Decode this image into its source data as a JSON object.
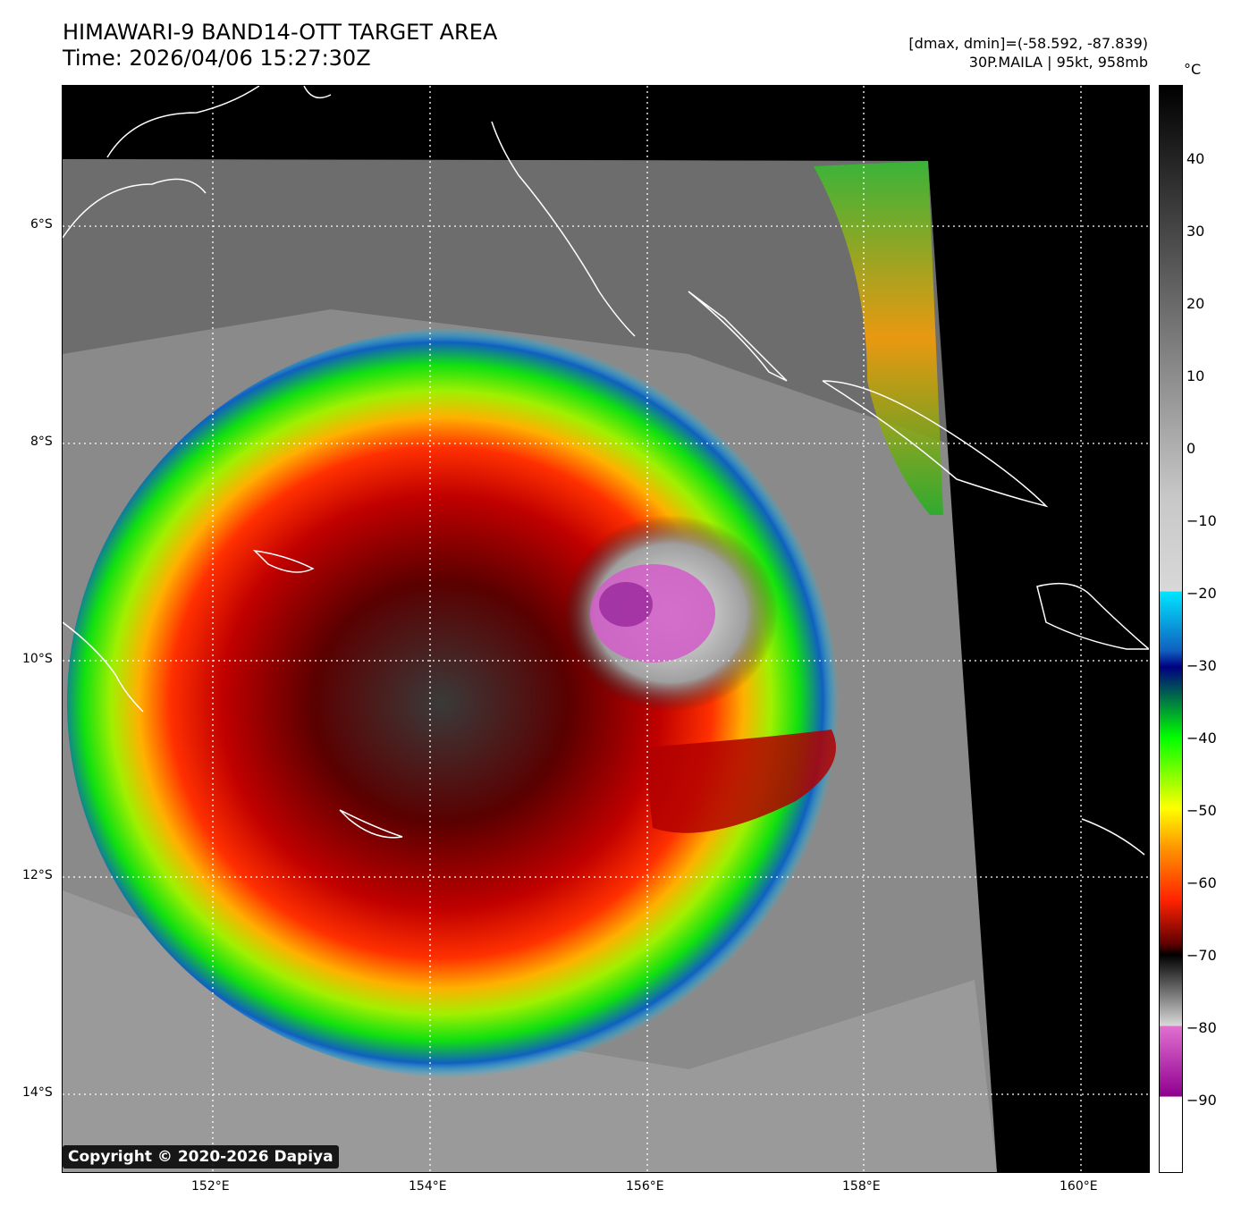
{
  "header": {
    "title_line1": "HIMAWARI-9 BAND14-OTT TARGET AREA",
    "title_line2": "Time: 2026/04/06 15:27:30Z",
    "meta_line1": "[dmax, dmin]=(-58.592, -87.839)",
    "meta_line2": "30P.MAILA | 95kt, 958mb"
  },
  "map": {
    "lat_labels": [
      "6°S",
      "8°S",
      "10°S",
      "12°S",
      "14°S"
    ],
    "lon_labels": [
      "152°E",
      "154°E",
      "156°E",
      "158°E",
      "160°E"
    ],
    "colors": {
      "background": "#000000",
      "coastline": "#ffffff",
      "gridline": "#ffffff"
    }
  },
  "colorbar": {
    "unit": "°C",
    "ticks": [
      "40",
      "30",
      "20",
      "10",
      "0",
      "−10",
      "−20",
      "−30",
      "−40",
      "−50",
      "−60",
      "−70",
      "−80",
      "−90"
    ],
    "colors": {
      "warm_top": "#000000",
      "neutral": "#b0b0b0",
      "cyan": "#00e5ff",
      "blue": "#1060c0",
      "navy": "#000080",
      "green": "#00ff00",
      "yellow": "#ffff00",
      "orange": "#ff9900",
      "red": "#ff2200",
      "dark_red": "#600000",
      "magenta": "#e070d0",
      "purple": "#900090",
      "white": "#ffffff"
    }
  },
  "footer": {
    "copyright": "Copyright © 2020-2026 Dapiya"
  }
}
